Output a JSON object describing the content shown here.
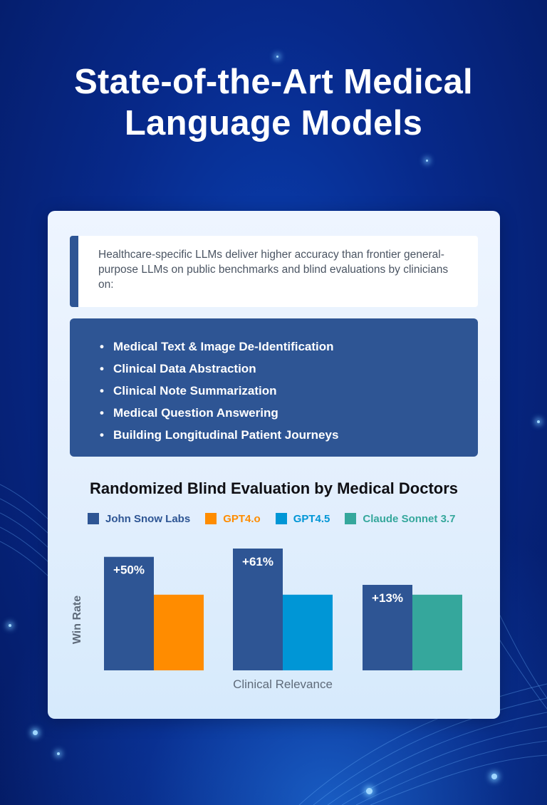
{
  "title_line1": "State-of-the-Art Medical",
  "title_line2": "Language Models",
  "intro": "Healthcare-specific LLMs deliver higher accuracy than frontier general-purpose LLMs on public benchmarks and blind evaluations by clinicians on:",
  "features": [
    "Medical Text & Image De-Identification",
    "Clinical Data Abstraction",
    "Clinical Note Summarization",
    "Medical Question Answering",
    "Building Longitudinal Patient Journeys"
  ],
  "bullet_glyph": "•",
  "colors": {
    "john_snow_labs": "#2e5594",
    "gpt4o": "#ff8c00",
    "gpt45": "#0096d6",
    "claude": "#35a79c"
  },
  "chart_data": {
    "type": "bar",
    "title": "Randomized Blind Evaluation by Medical Doctors",
    "ylabel": "Win Rate",
    "xlabel": "Clinical Relevance",
    "legend": [
      {
        "name": "John Snow Labs",
        "color": "#2e5594"
      },
      {
        "name": "GPT4.o",
        "color": "#ff8c00"
      },
      {
        "name": "GPT4.5",
        "color": "#0096d6"
      },
      {
        "name": "Claude Sonnet 3.7",
        "color": "#35a79c"
      }
    ],
    "groups": [
      {
        "label": "+50%",
        "bars": [
          {
            "series": "John Snow Labs",
            "value": 1.5
          },
          {
            "series": "GPT4.o",
            "value": 1.0
          }
        ]
      },
      {
        "label": "+61%",
        "bars": [
          {
            "series": "John Snow Labs",
            "value": 1.61
          },
          {
            "series": "GPT4.5",
            "value": 1.0
          }
        ]
      },
      {
        "label": "+13%",
        "bars": [
          {
            "series": "John Snow Labs",
            "value": 1.13
          },
          {
            "series": "Claude Sonnet 3.7",
            "value": 1.0
          }
        ]
      }
    ],
    "ylim": [
      0,
      1.61
    ],
    "grid": false,
    "legend_placement": "top"
  }
}
